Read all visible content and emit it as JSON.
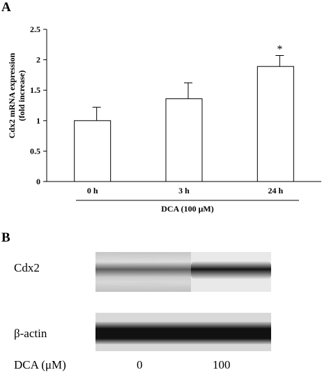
{
  "panel_a": {
    "letter": "A",
    "ylabel_line1": "Cdx2 mRNA expression",
    "ylabel_line2": "(fold increase)",
    "group_label": "DCA (100 μM)"
  },
  "chart_data": {
    "type": "bar",
    "categories": [
      "0 h",
      "3 h",
      "24 h"
    ],
    "values": [
      1.0,
      1.36,
      1.89
    ],
    "error_bars": [
      0.22,
      0.26,
      0.18
    ],
    "significance": [
      "",
      "",
      "*"
    ],
    "ylabel": "Cdx2 mRNA expression (fold increase)",
    "xlabel": "DCA (100 μM)",
    "ylim": [
      0,
      2.5
    ],
    "yticks": [
      "0",
      "0.5",
      "1",
      "1.5",
      "2",
      "2.5"
    ],
    "grid": false,
    "colors": {
      "bar_fill": "#ffffff",
      "bar_stroke": "#000000"
    }
  },
  "panel_b": {
    "letter": "B",
    "rows": [
      {
        "label": "Cdx2"
      },
      {
        "label": "β-actin"
      }
    ],
    "treatment": {
      "label": "DCA (μM)",
      "lanes": [
        "0",
        "100"
      ]
    }
  }
}
